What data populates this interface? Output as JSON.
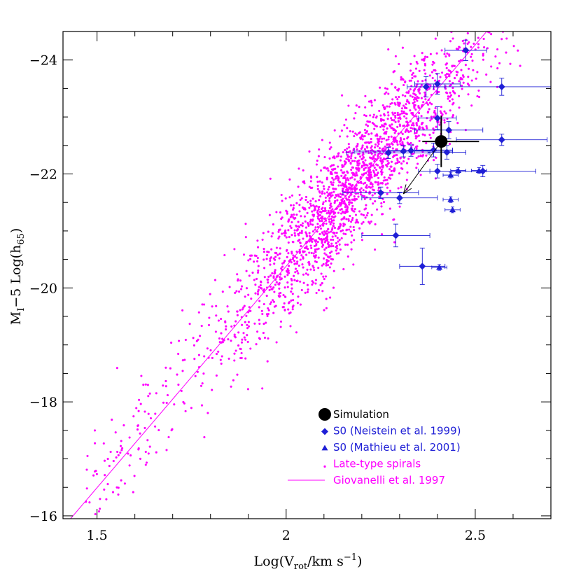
{
  "chart_data": {
    "type": "scatter",
    "xlabel": {
      "pre": "Log(V",
      "sub": "rot",
      "mid": "/km s",
      "sup": "−1",
      "post": ")"
    },
    "ylabel": {
      "pre": "M",
      "sub1": "I",
      "mid": "−5 Log(h",
      "sub2": "65",
      "post": ")"
    },
    "xlim": [
      1.41,
      2.7
    ],
    "ylim": [
      -15.95,
      -24.5
    ],
    "y_inverted": true,
    "x_ticks": [
      {
        "v": 1.5,
        "label": "1.5"
      },
      {
        "v": 2.0,
        "label": "2"
      },
      {
        "v": 2.5,
        "label": "2.5"
      }
    ],
    "y_ticks": [
      {
        "v": -16,
        "label": "−16"
      },
      {
        "v": -18,
        "label": "−18"
      },
      {
        "v": -20,
        "label": "−20"
      },
      {
        "v": -22,
        "label": "−22"
      },
      {
        "v": -24,
        "label": "−24"
      }
    ],
    "colors": {
      "simulation": "#000000",
      "neistein": "#1f1fd6",
      "mathieu": "#1f1fd6",
      "spirals": "#ff00ff",
      "fit": "#ff00ff"
    },
    "series": [
      {
        "name": "Simulation",
        "kind": "point",
        "points": [
          {
            "x": 2.41,
            "y": -22.57,
            "xerr": [
              0.05,
              0.1
            ],
            "yerr": [
              0.45,
              0.45
            ]
          }
        ],
        "arrow_to": {
          "x": 2.31,
          "y": -21.65
        }
      },
      {
        "name": "S0 (Neistein et al. 1999)",
        "kind": "diamond",
        "points": [
          {
            "x": 2.475,
            "y": -24.17,
            "xerr": 0.055,
            "yerr": 0.18
          },
          {
            "x": 2.4,
            "y": -23.58,
            "xerr": 0.06,
            "yerr": 0.18
          },
          {
            "x": 2.37,
            "y": -23.53,
            "xerr": 0.05,
            "yerr": 0.18
          },
          {
            "x": 2.57,
            "y": -23.53,
            "xerr": 0.18,
            "yerr": 0.15
          },
          {
            "x": 2.4,
            "y": -22.98,
            "xerr": 0.05,
            "yerr": 0.2
          },
          {
            "x": 2.43,
            "y": -22.77,
            "xerr": 0.09,
            "yerr": 0.15
          },
          {
            "x": 2.57,
            "y": -22.6,
            "xerr": 0.12,
            "yerr": 0.1
          },
          {
            "x": 2.39,
            "y": -22.42,
            "xerr": 0.05,
            "yerr": 0.12
          },
          {
            "x": 2.425,
            "y": -22.38,
            "xerr": 0.05,
            "yerr": 0.12
          },
          {
            "x": 2.33,
            "y": -22.41,
            "xerr": 0.06,
            "yerr": 0.1
          },
          {
            "x": 2.31,
            "y": -22.4,
            "xerr": 0.13,
            "yerr": 0.1
          },
          {
            "x": 2.27,
            "y": -22.37,
            "xerr": 0.11,
            "yerr": 0.1
          },
          {
            "x": 2.4,
            "y": -22.05,
            "xerr": 0.05,
            "yerr": 0.12
          },
          {
            "x": 2.52,
            "y": -22.05,
            "xerr": 0.14,
            "yerr": 0.1
          },
          {
            "x": 2.25,
            "y": -21.67,
            "xerr": 0.1,
            "yerr": 0.1
          },
          {
            "x": 2.3,
            "y": -21.58,
            "xerr": 0.1,
            "yerr": 0.1
          },
          {
            "x": 2.29,
            "y": -20.92,
            "xerr": 0.09,
            "yerr": 0.2
          },
          {
            "x": 2.36,
            "y": -20.38,
            "xerr": 0.06,
            "yerr": 0.32
          }
        ]
      },
      {
        "name": "S0 (Mathieu et al. 2001)",
        "kind": "triangle",
        "points": [
          {
            "x": 2.435,
            "y": -21.98,
            "xerr": 0.02,
            "yerr": 0.05
          },
          {
            "x": 2.455,
            "y": -22.06,
            "xerr": 0.02,
            "yerr": 0.05
          },
          {
            "x": 2.51,
            "y": -22.06,
            "xerr": 0.02,
            "yerr": 0.05
          },
          {
            "x": 2.435,
            "y": -21.55,
            "xerr": 0.02,
            "yerr": 0.05
          },
          {
            "x": 2.44,
            "y": -21.37,
            "xerr": 0.02,
            "yerr": 0.05
          },
          {
            "x": 2.405,
            "y": -20.36,
            "xerr": 0.02,
            "yerr": 0.05
          }
        ]
      },
      {
        "name": "Late-type spirals",
        "kind": "dots",
        "generated": {
          "count": 2200,
          "slope": -7.6,
          "intercept": -5.25,
          "scatter": 0.55,
          "x_center": 2.18,
          "x_spread": 0.16,
          "x_min": 1.47,
          "x_max": 2.64
        }
      },
      {
        "name": "Giovanelli et al. 1997",
        "kind": "line",
        "points": [
          {
            "x": 1.43,
            "y": -15.95
          },
          {
            "x": 2.53,
            "y": -24.5
          }
        ]
      }
    ],
    "legend": {
      "placement": "lower-right",
      "entries": [
        {
          "symbol": "big-dot",
          "label": "Simulation",
          "color": "#000000"
        },
        {
          "symbol": "diamond",
          "label": "S0 (Neistein et al. 1999)",
          "color": "#1f1fd6"
        },
        {
          "symbol": "triangle",
          "label": "S0 (Mathieu et al. 2001)",
          "color": "#1f1fd6"
        },
        {
          "symbol": "dot",
          "label": "Late-type spirals",
          "color": "#ff00ff"
        },
        {
          "symbol": "line",
          "label": "Giovanelli et al. 1997",
          "color": "#ff00ff"
        }
      ]
    }
  }
}
